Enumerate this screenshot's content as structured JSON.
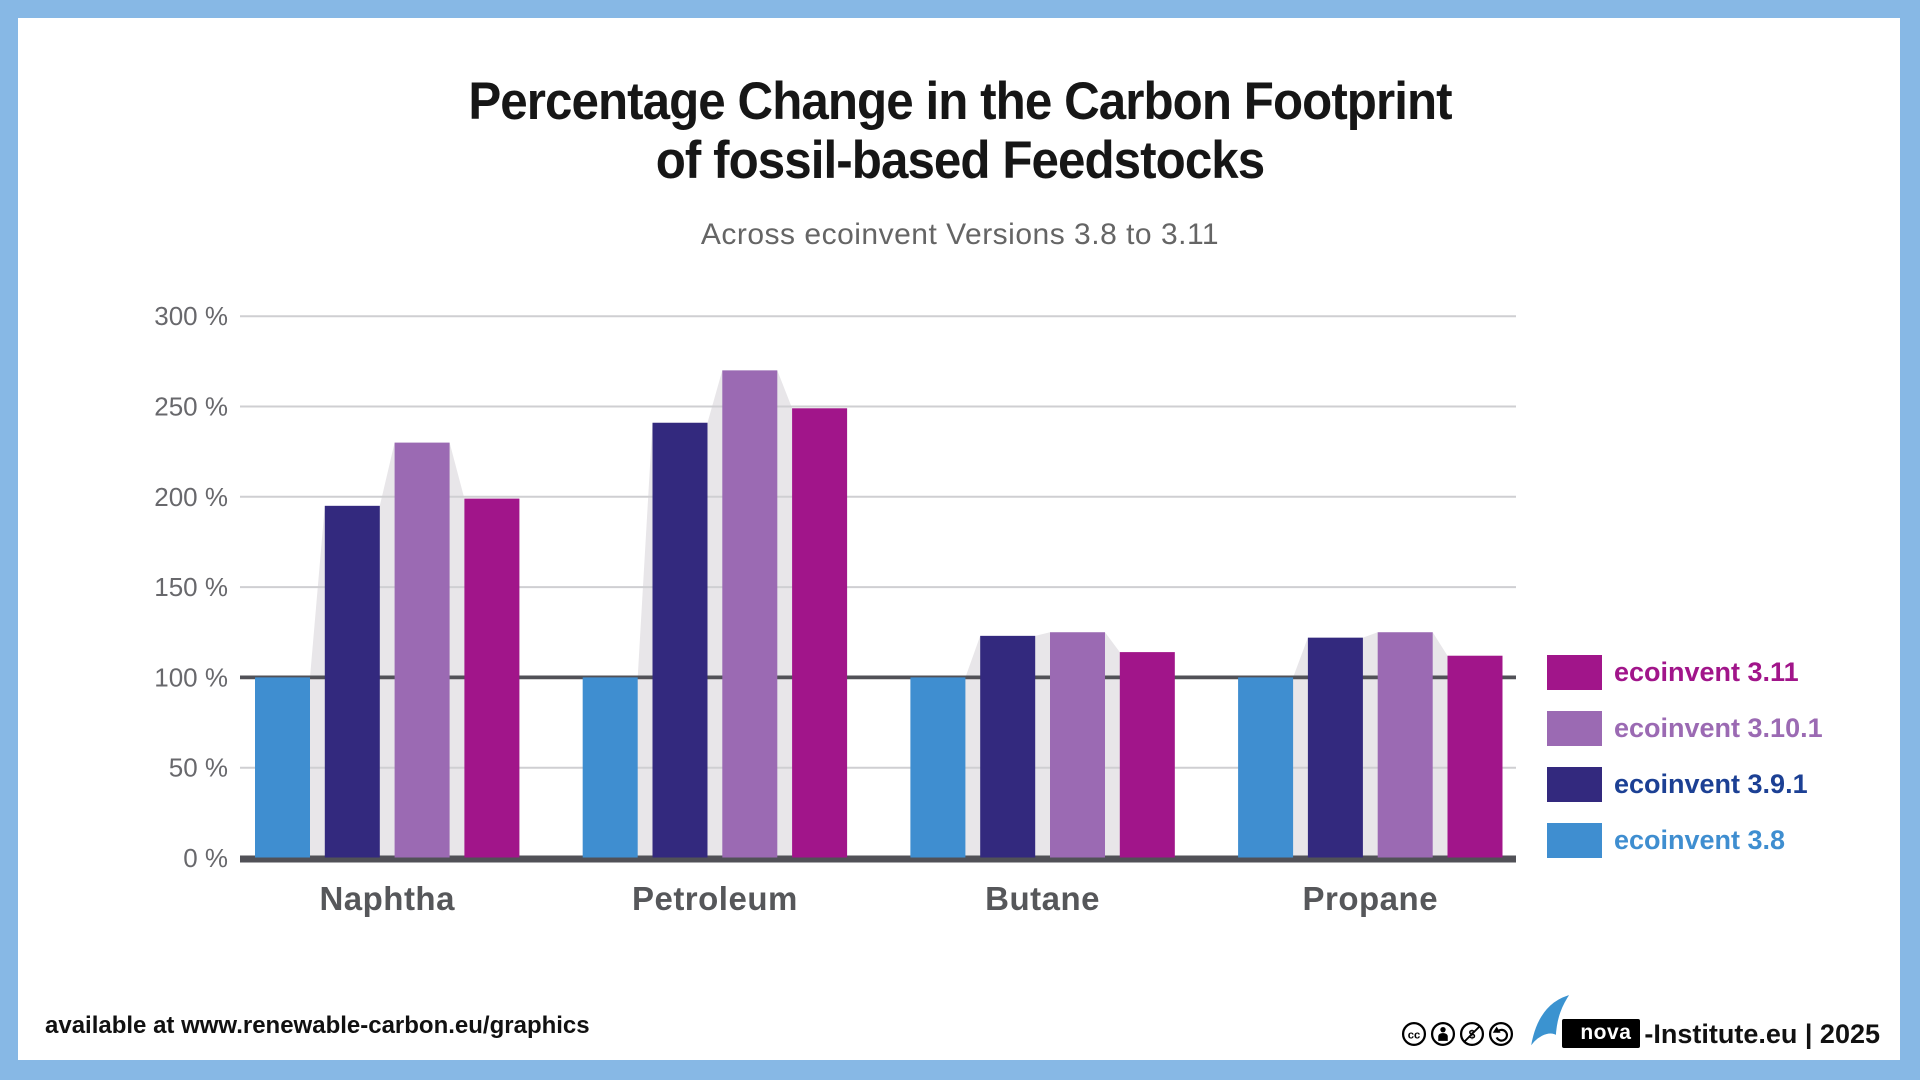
{
  "header": {
    "title_line1": "Percentage Change in the Carbon Footprint",
    "title_line2": "of fossil-based Feedstocks",
    "subtitle": "Across ecoinvent Versions 3.8 to 3.11"
  },
  "chart_data": {
    "type": "bar",
    "title": "Percentage Change in the Carbon Footprint of fossil-based Feedstocks",
    "subtitle": "Across ecoinvent Versions 3.8 to 3.11",
    "categories": [
      "Naphtha",
      "Petroleum",
      "Butane",
      "Propane"
    ],
    "series": [
      {
        "name": "ecoinvent 3.8",
        "color": "#3f8ed0",
        "values": [
          100,
          100,
          100,
          100
        ]
      },
      {
        "name": "ecoinvent 3.9.1",
        "color": "#33297e",
        "values": [
          195,
          241,
          123,
          122
        ]
      },
      {
        "name": "ecoinvent 3.10.1",
        "color": "#9b6ab3",
        "values": [
          230,
          270,
          125,
          125
        ]
      },
      {
        "name": "ecoinvent 3.11",
        "color": "#a1158a",
        "values": [
          199,
          249,
          114,
          112
        ]
      }
    ],
    "ylim": [
      0,
      300
    ],
    "yticks": [
      0,
      50,
      100,
      150,
      200,
      250,
      300
    ],
    "ytick_suffix": " %",
    "grid": "horizontal",
    "emphasized_gridlines": [
      0,
      100
    ],
    "gridline_color": "#cfcfd2",
    "emphasized_line_color": "#515157",
    "axis_label_color": "#68686c",
    "category_label_color": "#56575a",
    "shadow_color": "#e8e6e9",
    "legend_position": "right"
  },
  "legend": {
    "items": [
      {
        "label": "ecoinvent 3.11",
        "color": "#a1158a",
        "text_color": "#a1158a"
      },
      {
        "label": "ecoinvent 3.10.1",
        "color": "#9b6ab3",
        "text_color": "#9b6ab3"
      },
      {
        "label": "ecoinvent 3.9.1",
        "color": "#33297e",
        "text_color": "#1c4094"
      },
      {
        "label": "ecoinvent 3.8",
        "color": "#3f8ed0",
        "text_color": "#3f8ed0"
      }
    ]
  },
  "footer": {
    "left_text": "available at www.renewable-carbon.eu/graphics",
    "nova_wordmark": "nova",
    "right_text": "-Institute.eu | 2025",
    "license_icons": [
      "cc-icon",
      "cc-by-icon",
      "cc-nc-icon",
      "cc-sa-icon"
    ]
  }
}
